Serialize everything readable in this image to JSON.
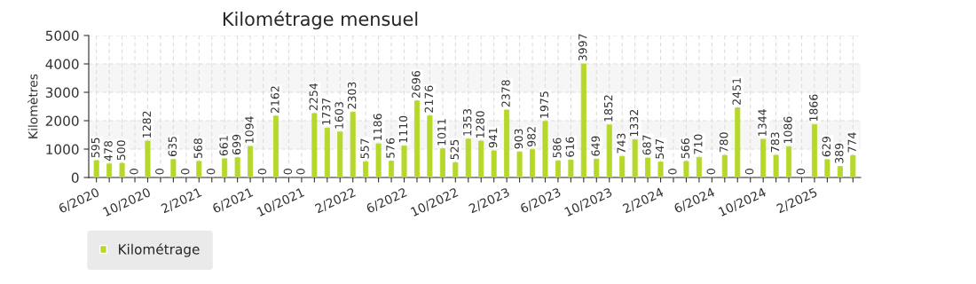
{
  "chart_data": {
    "type": "bar",
    "title": "Kilométrage mensuel",
    "ylabel": "Kilomètres",
    "categories": [
      "6/2020",
      null,
      null,
      null,
      "10/2020",
      null,
      null,
      null,
      "2/2021",
      null,
      null,
      null,
      "6/2021",
      null,
      null,
      null,
      "10/2021",
      null,
      null,
      null,
      "2/2022",
      null,
      null,
      null,
      "6/2022",
      null,
      null,
      null,
      "10/2022",
      null,
      null,
      null,
      "2/2023",
      null,
      null,
      null,
      "6/2023",
      null,
      null,
      null,
      "10/2023",
      null,
      null,
      null,
      "2/2024",
      null,
      null,
      null,
      "6/2024",
      null,
      null,
      null,
      "10/2024",
      null,
      null,
      null,
      "2/2025",
      null,
      null,
      null
    ],
    "series": [
      {
        "name": "Kilométrage",
        "color": "#b5d82a",
        "values": [
          595,
          478,
          500,
          0,
          1282,
          0,
          635,
          0,
          568,
          0,
          661,
          699,
          1094,
          0,
          2162,
          0,
          0,
          2254,
          1737,
          1603,
          2303,
          557,
          1186,
          576,
          1110,
          2696,
          2176,
          1011,
          525,
          1353,
          1280,
          941,
          2378,
          903,
          982,
          1975,
          586,
          616,
          3997,
          649,
          1852,
          743,
          1332,
          687,
          547,
          0,
          566,
          710,
          0,
          780,
          2451,
          0,
          1344,
          783,
          1086,
          0,
          1866,
          629,
          389,
          774
        ]
      }
    ],
    "ylim": [
      0,
      5000
    ],
    "yticks": [
      0,
      1000,
      2000,
      3000,
      4000,
      5000
    ],
    "bands": [
      {
        "axis": "y",
        "from": 1000,
        "to": 2000,
        "color": "#f6f6f6"
      },
      {
        "axis": "y",
        "from": 3000,
        "to": 4000,
        "color": "#f6f6f6"
      }
    ],
    "grid": true,
    "legend": "bottom left",
    "data_labels": true
  }
}
